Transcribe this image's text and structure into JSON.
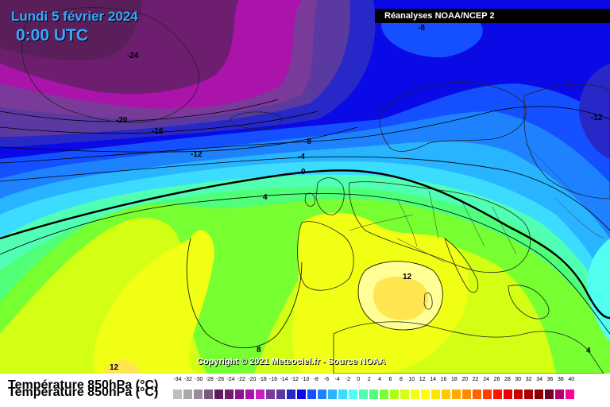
{
  "header": {
    "date": "Lundi 5 février 2024",
    "time": "0:00 UTC",
    "source": "Réanalyses NOAA/NCEP 2"
  },
  "footer": {
    "title": "Température 850hPa (°C)",
    "copyright": "Copyright © 2021 Meteociel.fr - Source NOAA"
  },
  "legend": {
    "ticks": [
      "-34",
      "-32",
      "-30",
      "-28",
      "-26",
      "-24",
      "-22",
      "-20",
      "-18",
      "-16",
      "-14",
      "-12",
      "-10",
      "-8",
      "-6",
      "-4",
      "-2",
      "0",
      "2",
      "4",
      "6",
      "8",
      "10",
      "12",
      "14",
      "16",
      "18",
      "20",
      "22",
      "24",
      "26",
      "28",
      "30",
      "32",
      "34",
      "36",
      "38",
      "40"
    ],
    "colors": [
      "#bebebe",
      "#a9a9a9",
      "#9a8a9a",
      "#7a5a7a",
      "#5a1e5a",
      "#6e1e6e",
      "#8c148c",
      "#aa14aa",
      "#c81ec8",
      "#7a3a9a",
      "#5a3aa0",
      "#2828c8",
      "#0a0ae6",
      "#1450ff",
      "#1e82ff",
      "#28b4ff",
      "#3cdcff",
      "#50fff0",
      "#50ffb4",
      "#50ff78",
      "#78ff32",
      "#aaff14",
      "#d2ff14",
      "#f0ff14",
      "#ffff00",
      "#ffe600",
      "#ffc800",
      "#ffaa00",
      "#ff8c00",
      "#ff6400",
      "#ff3c00",
      "#ff1400",
      "#e60000",
      "#c80000",
      "#aa0000",
      "#8c0000",
      "#6e0028",
      "#b4006e",
      "#ff0096"
    ]
  },
  "map_labels": {
    "l_m24": "-24",
    "l_m20": "-20",
    "l_m16": "-16",
    "l_m12a": "-12",
    "l_m8top": "-8",
    "l_m8": "-8",
    "l_m4": "-4",
    "l_0": "0",
    "l_4": "4",
    "l_12": "12",
    "l_m12e": "-12",
    "l_8": "8",
    "l_12sw": "12",
    "l_4se": "4"
  }
}
